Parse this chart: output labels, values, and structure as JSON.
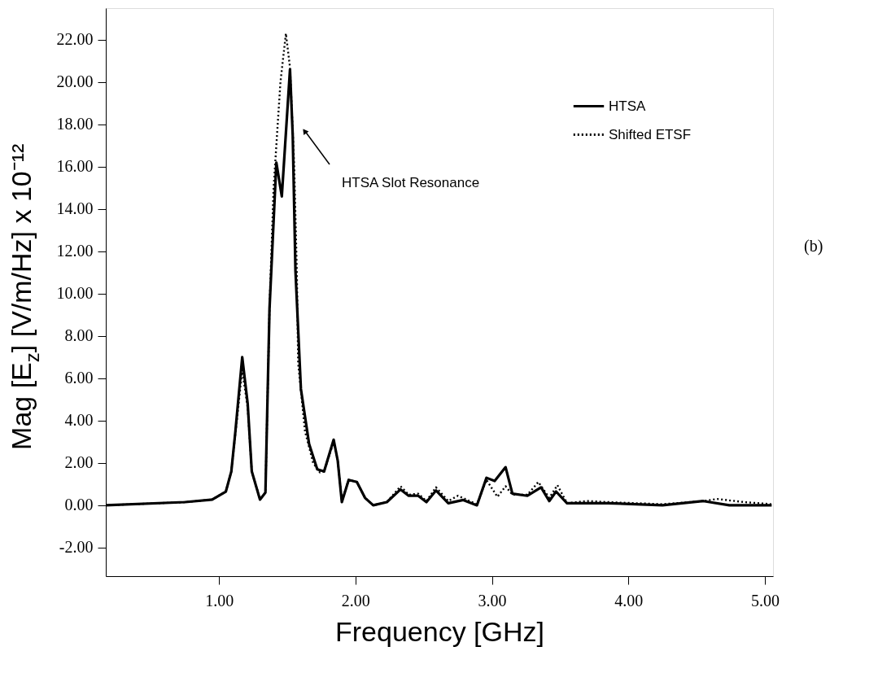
{
  "chart_data": {
    "type": "line",
    "xlabel": "Frequency [GHz]",
    "ylabel": "Mag [E$_{z}$]  [V/m/Hz] x 10⁻¹²",
    "xlim": [
      0.17,
      5.06
    ],
    "ylim": [
      -3.35,
      23.5
    ],
    "xticks": [
      {
        "value": 1,
        "label": "1.00"
      },
      {
        "value": 2,
        "label": "2.00"
      },
      {
        "value": 3,
        "label": "3.00"
      },
      {
        "value": 4,
        "label": "4.00"
      },
      {
        "value": 5,
        "label": "5.00"
      }
    ],
    "yticks": [
      {
        "value": -2,
        "label": "-2.00"
      },
      {
        "value": 0,
        "label": "0.00"
      },
      {
        "value": 2,
        "label": "2.00"
      },
      {
        "value": 4,
        "label": "4.00"
      },
      {
        "value": 6,
        "label": "6.00"
      },
      {
        "value": 8,
        "label": "8.00"
      },
      {
        "value": 10,
        "label": "10.00"
      },
      {
        "value": 12,
        "label": "12.00"
      },
      {
        "value": 14,
        "label": "14.00"
      },
      {
        "value": 16,
        "label": "16.00"
      },
      {
        "value": 18,
        "label": "18.00"
      },
      {
        "value": 20,
        "label": "20.00"
      },
      {
        "value": 22,
        "label": "22.00"
      }
    ],
    "grid": false,
    "legend": "top right",
    "marker": "none",
    "annotations": [
      "HTSA Slot Resonance",
      "(b)"
    ],
    "series": [
      {
        "name": "HTSA",
        "color": "#000000",
        "line_style": "solid",
        "x": [
          0.17,
          0.75,
          0.95,
          1.05,
          1.09,
          1.12,
          1.17,
          1.21,
          1.24,
          1.3,
          1.34,
          1.37,
          1.42,
          1.46,
          1.52,
          1.54,
          1.56,
          1.6,
          1.66,
          1.72,
          1.77,
          1.84,
          1.87,
          1.9,
          1.95,
          2.01,
          2.07,
          2.13,
          2.23,
          2.33,
          2.39,
          2.46,
          2.52,
          2.59,
          2.68,
          2.79,
          2.89,
          2.96,
          3.02,
          3.1,
          3.15,
          3.26,
          3.36,
          3.42,
          3.47,
          3.55,
          3.66,
          3.85,
          4.25,
          4.55,
          4.74,
          5.05
        ],
        "values": [
          0.0,
          0.15,
          0.27,
          0.65,
          1.6,
          3.5,
          7.0,
          4.8,
          1.6,
          0.27,
          0.6,
          9.3,
          16.2,
          14.6,
          20.6,
          17.5,
          11.1,
          5.5,
          2.9,
          1.7,
          1.6,
          3.1,
          2.1,
          0.15,
          1.2,
          1.1,
          0.35,
          0.0,
          0.15,
          0.75,
          0.45,
          0.45,
          0.15,
          0.7,
          0.1,
          0.25,
          0.0,
          1.3,
          1.15,
          1.8,
          0.55,
          0.45,
          0.85,
          0.2,
          0.65,
          0.1,
          0.1,
          0.1,
          0.0,
          0.2,
          0.0,
          0.0
        ]
      },
      {
        "name": "Shifted ETSF",
        "color": "#000000",
        "line_style": "dotted",
        "x": [
          0.17,
          0.75,
          0.95,
          1.05,
          1.09,
          1.12,
          1.17,
          1.21,
          1.24,
          1.3,
          1.34,
          1.37,
          1.4,
          1.45,
          1.49,
          1.52,
          1.55,
          1.57,
          1.58,
          1.63,
          1.69,
          1.74,
          1.77,
          1.84,
          1.87,
          1.9,
          1.95,
          2.01,
          2.07,
          2.13,
          2.23,
          2.33,
          2.39,
          2.46,
          2.52,
          2.59,
          2.68,
          2.75,
          2.89,
          2.96,
          3.04,
          3.1,
          3.15,
          3.26,
          3.34,
          3.42,
          3.48,
          3.55,
          3.7,
          3.85,
          4.25,
          4.55,
          4.65,
          4.85,
          5.05
        ],
        "values": [
          0.0,
          0.15,
          0.27,
          0.65,
          1.6,
          3.4,
          6.4,
          4.6,
          1.6,
          0.3,
          0.6,
          9.3,
          15.0,
          20.0,
          22.3,
          20.7,
          16.2,
          11.1,
          6.7,
          3.5,
          2.0,
          1.55,
          1.6,
          3.0,
          2.1,
          0.2,
          1.2,
          1.1,
          0.35,
          0.0,
          0.15,
          0.9,
          0.5,
          0.55,
          0.2,
          0.85,
          0.2,
          0.45,
          0.05,
          1.2,
          0.4,
          0.9,
          0.5,
          0.5,
          1.1,
          0.35,
          0.95,
          0.1,
          0.2,
          0.15,
          0.05,
          0.2,
          0.3,
          0.15,
          0.05
        ]
      }
    ]
  }
}
